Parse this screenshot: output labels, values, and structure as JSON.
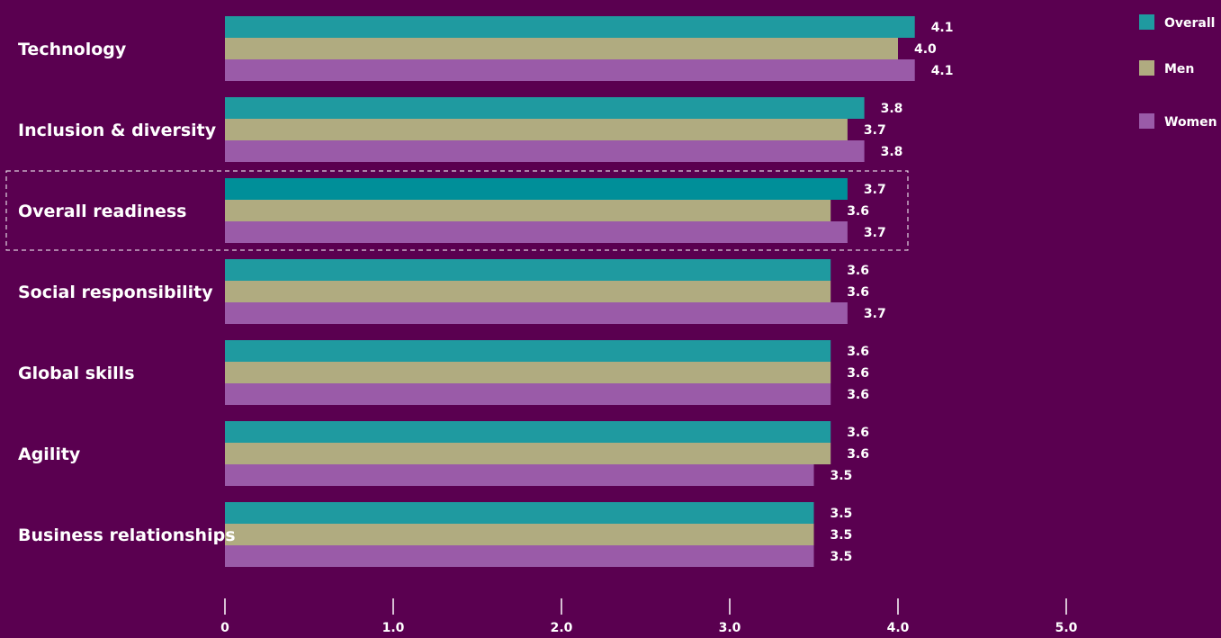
{
  "chart_data": {
    "type": "bar",
    "orientation": "horizontal",
    "categories": [
      "Technology",
      "Inclusion & diversity",
      "Overall readiness",
      "Social responsibility",
      "Global skills",
      "Agility",
      "Business relationships"
    ],
    "series": [
      {
        "name": "Overall",
        "color": "#1f9aa0",
        "values": [
          4.1,
          3.8,
          3.7,
          3.6,
          3.6,
          3.6,
          3.5
        ]
      },
      {
        "name": "Men",
        "color": "#b0ab80",
        "values": [
          4.0,
          3.7,
          3.6,
          3.6,
          3.6,
          3.6,
          3.5
        ]
      },
      {
        "name": "Women",
        "color": "#9a5ba8",
        "values": [
          4.1,
          3.8,
          3.7,
          3.7,
          3.6,
          3.5,
          3.5
        ]
      }
    ],
    "data_labels": [
      [
        "4.1",
        "3.8",
        "3.7",
        "3.6",
        "3.6",
        "3.6",
        "3.5"
      ],
      [
        "4.0",
        "3.7",
        "3.6",
        "3.6",
        "3.6",
        "3.6",
        "3.5"
      ],
      [
        "4.1",
        "3.8",
        "3.7",
        "3.7",
        "3.6",
        "3.5",
        "3.5"
      ]
    ],
    "highlighted_category": "Overall readiness",
    "highlight_color": "#008f99",
    "xlim": [
      0,
      5
    ],
    "xticks": [
      0,
      1,
      2,
      3,
      4,
      5
    ],
    "xtick_labels": [
      "0",
      "1.0",
      "2.0",
      "3.0",
      "4.0",
      "5.0"
    ],
    "legend_position": "top-right",
    "grid": false,
    "title": "",
    "xlabel": "",
    "ylabel": ""
  },
  "colors": {
    "background": "#5a0050",
    "text": "#ffffff",
    "highlight_border": "#ffffff"
  }
}
